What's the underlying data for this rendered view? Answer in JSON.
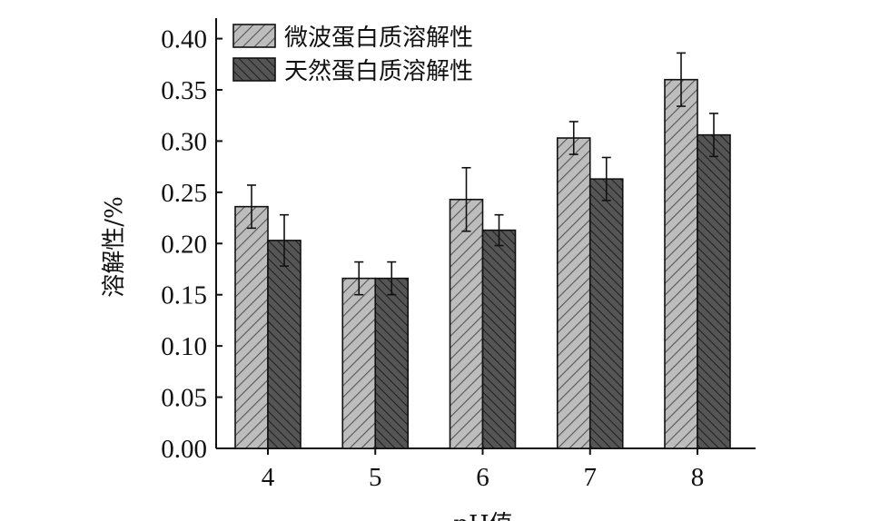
{
  "chart_data": {
    "type": "bar",
    "categories": [
      "4",
      "5",
      "6",
      "7",
      "8"
    ],
    "series": [
      {
        "name": "微波蛋白质溶解性",
        "values": [
          0.236,
          0.166,
          0.243,
          0.303,
          0.36
        ],
        "errors": [
          0.021,
          0.016,
          0.031,
          0.016,
          0.026
        ],
        "color": "#bdbdbd",
        "hatch_color": "#555555"
      },
      {
        "name": "天然蛋白质溶解性",
        "values": [
          0.203,
          0.166,
          0.213,
          0.263,
          0.306
        ],
        "errors": [
          0.025,
          0.016,
          0.015,
          0.021,
          0.021
        ],
        "color": "#555555",
        "hatch_color": "#1e1e1e"
      }
    ],
    "xlabel": "pH值",
    "ylabel": "溶解性/%",
    "ylim": [
      0,
      0.42
    ],
    "yticks": [
      "0.00",
      "0.05",
      "0.10",
      "0.15",
      "0.20",
      "0.25",
      "0.30",
      "0.35",
      "0.40"
    ],
    "grid": false,
    "legend_position": "top-left"
  }
}
